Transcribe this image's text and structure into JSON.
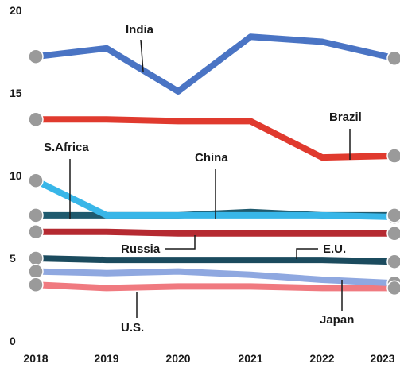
{
  "chart_data": {
    "type": "line",
    "categories": [
      "2018",
      "2019",
      "2020",
      "2021",
      "2022",
      "2023"
    ],
    "ylim": [
      0,
      20
    ],
    "yticks": [
      "0",
      "5",
      "10",
      "15",
      "20"
    ],
    "grid": false,
    "series": [
      {
        "name": "India",
        "color": "#4a74c4",
        "values": [
          17.2,
          17.7,
          15.1,
          18.4,
          18.1,
          17.1
        ]
      },
      {
        "name": "Brazil",
        "color": "#e03a2e",
        "values": [
          13.4,
          13.4,
          13.3,
          13.3,
          11.1,
          11.2
        ]
      },
      {
        "name": "S.Africa",
        "color": "#38b6e8",
        "values": [
          9.7,
          7.6,
          7.6,
          7.6,
          7.6,
          7.5
        ]
      },
      {
        "name": "China",
        "color": "#1f5a6e",
        "values": [
          7.6,
          7.6,
          7.6,
          7.8,
          7.6,
          7.6
        ]
      },
      {
        "name": "Russia",
        "color": "#b52a31",
        "values": [
          6.6,
          6.6,
          6.5,
          6.5,
          6.5,
          6.5
        ]
      },
      {
        "name": "E.U.",
        "color": "#1b4b5e",
        "values": [
          5.0,
          4.9,
          4.9,
          4.9,
          4.9,
          4.8
        ]
      },
      {
        "name": "Japan",
        "color": "#8fa8e0",
        "values": [
          4.2,
          4.1,
          4.2,
          4.0,
          3.7,
          3.5
        ]
      },
      {
        "name": "U.S.",
        "color": "#f07a80",
        "values": [
          3.4,
          3.2,
          3.3,
          3.3,
          3.2,
          3.2
        ]
      }
    ]
  }
}
